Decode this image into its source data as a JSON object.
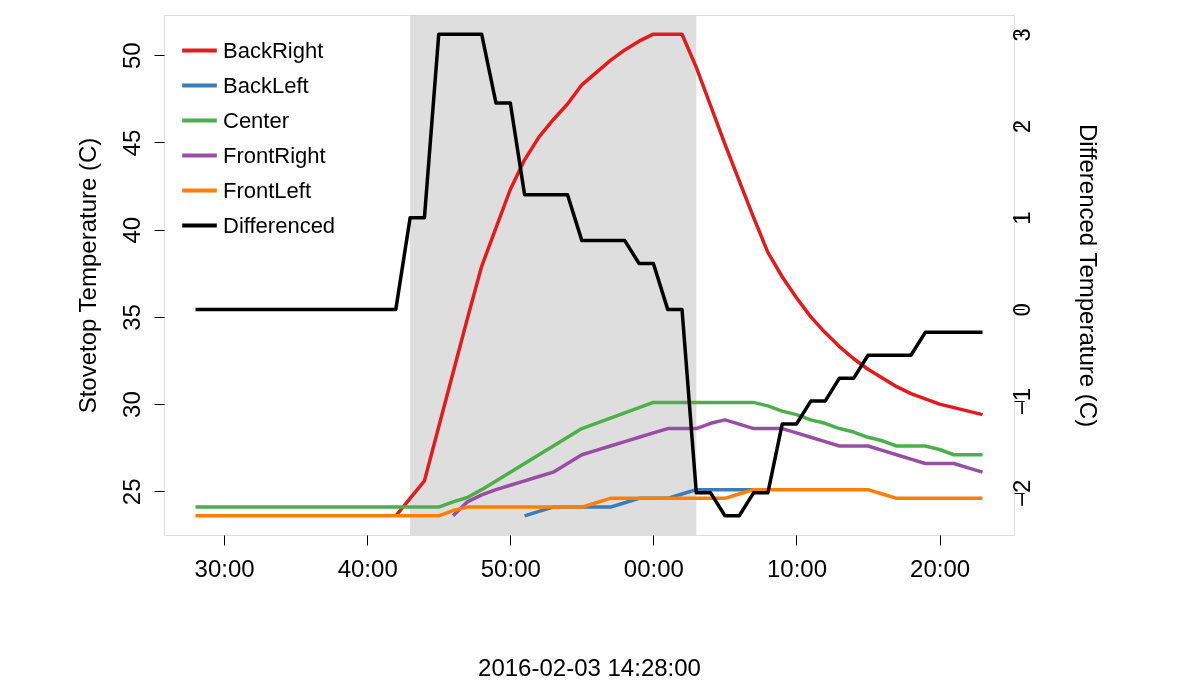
{
  "chart_data": {
    "type": "line",
    "xlabel": "2016-02-03 14:28:00",
    "ylabel": "Stovetop Temperature (C)",
    "y2label": "Differenced Temperature (C)",
    "x": [
      "2016-02-03T14:28",
      "2016-02-03T14:29",
      "2016-02-03T14:30",
      "2016-02-03T14:31",
      "2016-02-03T14:32",
      "2016-02-03T14:33",
      "2016-02-03T14:34",
      "2016-02-03T14:35",
      "2016-02-03T14:36",
      "2016-02-03T14:37",
      "2016-02-03T14:38",
      "2016-02-03T14:39",
      "2016-02-03T14:40",
      "2016-02-03T14:41",
      "2016-02-03T14:42",
      "2016-02-03T14:43",
      "2016-02-03T14:44",
      "2016-02-03T14:45",
      "2016-02-03T14:46",
      "2016-02-03T14:47",
      "2016-02-03T14:48",
      "2016-02-03T14:49",
      "2016-02-03T14:50",
      "2016-02-03T14:51",
      "2016-02-03T14:52",
      "2016-02-03T14:53",
      "2016-02-03T14:54",
      "2016-02-03T14:55",
      "2016-02-03T14:56",
      "2016-02-03T14:57",
      "2016-02-03T14:58",
      "2016-02-03T14:59",
      "2016-02-03T15:00",
      "2016-02-03T15:01",
      "2016-02-03T15:02",
      "2016-02-03T15:03",
      "2016-02-03T15:04",
      "2016-02-03T15:05",
      "2016-02-03T15:06",
      "2016-02-03T15:07",
      "2016-02-03T15:08",
      "2016-02-03T15:09",
      "2016-02-03T15:10",
      "2016-02-03T15:11",
      "2016-02-03T15:12",
      "2016-02-03T15:13",
      "2016-02-03T15:14",
      "2016-02-03T15:15",
      "2016-02-03T15:16",
      "2016-02-03T15:17",
      "2016-02-03T15:18",
      "2016-02-03T15:19",
      "2016-02-03T15:20",
      "2016-02-03T15:21",
      "2016-02-03T15:22",
      "2016-02-03T15:23"
    ],
    "series": [
      {
        "name": "BackRight",
        "color": "#e41a1c",
        "values": [
          null,
          null,
          null,
          null,
          null,
          null,
          null,
          null,
          null,
          null,
          null,
          null,
          null,
          null,
          23.6,
          24.6,
          25.6,
          28.7,
          31.8,
          34.9,
          37.9,
          40.1,
          42.3,
          44.0,
          45.3,
          46.3,
          47.2,
          48.3,
          49.0,
          49.7,
          50.3,
          50.8,
          51.2,
          51.2,
          51.2,
          49.3,
          47.1,
          44.9,
          42.8,
          40.7,
          38.7,
          37.3,
          36.1,
          35.0,
          34.1,
          33.3,
          32.6,
          32.0,
          31.5,
          31.0,
          30.6,
          30.3,
          30.0,
          29.8,
          29.6,
          29.4
        ]
      },
      {
        "name": "BackLeft",
        "color": "#377eb8",
        "values": [
          null,
          null,
          null,
          null,
          null,
          null,
          null,
          null,
          null,
          null,
          null,
          null,
          null,
          null,
          null,
          null,
          null,
          null,
          null,
          null,
          null,
          null,
          null,
          23.6,
          23.85,
          24.1,
          24.1,
          24.1,
          24.1,
          24.1,
          24.35,
          24.6,
          24.6,
          24.6,
          24.85,
          25.1,
          25.1,
          25.1,
          25.1,
          25.1,
          null,
          null,
          null,
          null,
          null,
          null,
          null,
          null,
          null,
          null,
          null,
          null,
          null,
          null,
          null,
          null
        ]
      },
      {
        "name": "Center",
        "color": "#4daf4a",
        "values": [
          24.1,
          24.1,
          24.1,
          24.1,
          24.1,
          24.1,
          24.1,
          24.1,
          24.1,
          24.1,
          24.1,
          24.1,
          24.1,
          24.1,
          24.1,
          24.1,
          24.1,
          24.1,
          24.4,
          24.65,
          25.1,
          25.6,
          26.1,
          26.6,
          27.1,
          27.6,
          28.1,
          28.6,
          28.9,
          29.2,
          29.5,
          29.8,
          30.1,
          30.1,
          30.1,
          30.1,
          30.1,
          30.1,
          30.1,
          30.1,
          29.9,
          29.6,
          29.4,
          29.1,
          28.9,
          28.6,
          28.4,
          28.1,
          27.9,
          27.6,
          27.6,
          27.6,
          27.4,
          27.1,
          27.1,
          27.1
        ]
      },
      {
        "name": "FrontRight",
        "color": "#984ea3",
        "values": [
          null,
          null,
          null,
          null,
          null,
          null,
          null,
          null,
          null,
          null,
          null,
          null,
          null,
          null,
          null,
          null,
          null,
          null,
          23.6,
          24.4,
          24.8,
          25.1,
          25.35,
          25.6,
          25.85,
          26.1,
          26.6,
          27.1,
          27.35,
          27.6,
          27.85,
          28.1,
          28.35,
          28.6,
          28.6,
          28.6,
          28.9,
          29.1,
          28.85,
          28.6,
          28.6,
          28.6,
          28.35,
          28.1,
          27.85,
          27.6,
          27.6,
          27.6,
          27.35,
          27.1,
          26.85,
          26.6,
          26.6,
          26.6,
          26.35,
          26.1
        ]
      },
      {
        "name": "FrontLeft",
        "color": "#ff7f00",
        "values": [
          23.6,
          23.6,
          23.6,
          23.6,
          23.6,
          23.6,
          23.6,
          23.6,
          23.6,
          23.6,
          23.6,
          23.6,
          23.6,
          23.6,
          23.6,
          23.6,
          23.6,
          23.6,
          23.9,
          24.1,
          24.1,
          24.1,
          24.1,
          24.1,
          24.1,
          24.1,
          24.1,
          24.1,
          24.35,
          24.6,
          24.6,
          24.6,
          24.6,
          24.6,
          24.6,
          24.6,
          24.6,
          24.6,
          24.85,
          25.1,
          25.1,
          25.1,
          25.1,
          25.1,
          25.1,
          25.1,
          25.1,
          25.1,
          24.85,
          24.6,
          24.6,
          24.6,
          24.6,
          24.6,
          24.6,
          24.6
        ]
      },
      {
        "name": "Differenced",
        "color": "#000000",
        "axis": "y2",
        "values": [
          0,
          0,
          0,
          0,
          0,
          0,
          0,
          0,
          0,
          0,
          0,
          0,
          0,
          0,
          0,
          1,
          1,
          3,
          3,
          3,
          3,
          2.25,
          2.25,
          1.25,
          1.25,
          1.25,
          1.25,
          0.75,
          0.75,
          0.75,
          0.75,
          0.5,
          0.5,
          0,
          0,
          -2,
          -2,
          -2.25,
          -2.25,
          -2,
          -2,
          -1.25,
          -1.25,
          -1,
          -1,
          -0.75,
          -0.75,
          -0.5,
          -0.5,
          -0.5,
          -0.5,
          -0.25,
          -0.25,
          -0.25,
          -0.25,
          -0.25
        ]
      }
    ],
    "xlim": [
      "2016-02-03T14:25:48",
      "2016-02-03T15:25:12"
    ],
    "xticks": [
      {
        "value": "2016-02-03T14:30",
        "label": "30:00"
      },
      {
        "value": "2016-02-03T14:40",
        "label": "40:00"
      },
      {
        "value": "2016-02-03T14:50",
        "label": "50:00"
      },
      {
        "value": "2016-02-03T15:00",
        "label": "00:00"
      },
      {
        "value": "2016-02-03T15:10",
        "label": "10:00"
      },
      {
        "value": "2016-02-03T15:20",
        "label": "20:00"
      }
    ],
    "ylim": [
      22.5,
      52.3
    ],
    "yticks": [
      25,
      30,
      35,
      40,
      45,
      50
    ],
    "y2lim": [
      -2.46,
      3.21
    ],
    "y2ticks": [
      -2,
      -1,
      0,
      1,
      2,
      3
    ],
    "bands": [
      {
        "axis": "x",
        "from": "2016-02-03T14:43",
        "to": "2016-02-03T15:03",
        "color": "#d3d3d3"
      }
    ],
    "legend": "top left",
    "grid": false,
    "line_style": "solid"
  }
}
